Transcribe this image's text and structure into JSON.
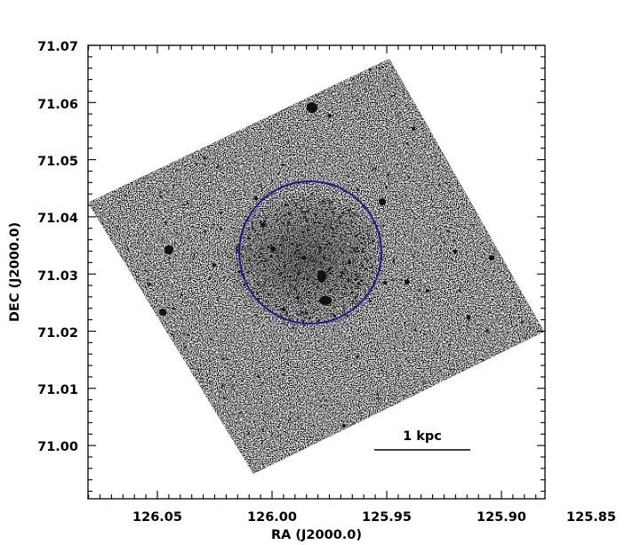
{
  "x_axis": {
    "label": "RA (J2000.0)",
    "ticks": [
      "126.05",
      "126.00",
      "125.95",
      "125.90",
      "125.85"
    ]
  },
  "y_axis": {
    "label": "DEC (J2000.0)",
    "ticks": [
      "71.07",
      "71.06",
      "71.05",
      "71.04",
      "71.03",
      "71.02",
      "71.01",
      "71.00"
    ]
  },
  "scale_bar": {
    "label": "1 kpc"
  },
  "colors": {
    "circle": "#1a1a8c",
    "axes": "#000000",
    "stars": "#111111"
  }
}
